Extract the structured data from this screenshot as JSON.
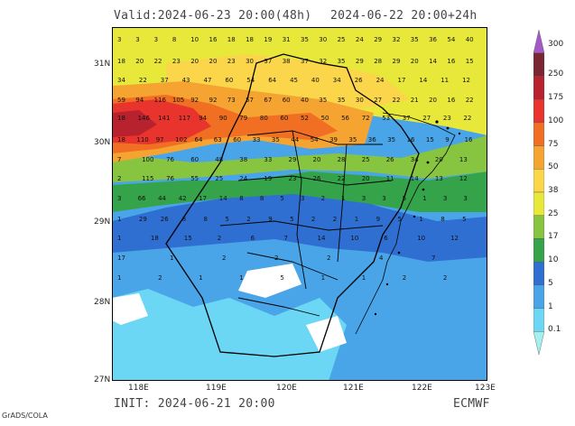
{
  "header": {
    "valid": "Valid:2024-06-23 20:00(48h)",
    "forecast": "2024-06-22 20:00+24h",
    "init": "INIT: 2024-06-21 20:00",
    "model": "ECMWF"
  },
  "credit": "GrADS/COLA",
  "axes": {
    "lat": [
      "31N",
      "30N",
      "29N",
      "28N",
      "27N"
    ],
    "lon": [
      "118E",
      "119E",
      "120E",
      "121E",
      "122E",
      "123E"
    ]
  },
  "colorbar": {
    "levels": [
      "300",
      "250",
      "175",
      "100",
      "75",
      "50",
      "38",
      "25",
      "17",
      "10",
      "5",
      "1",
      "0.1"
    ],
    "colors": [
      "#a35ac8",
      "#7a2632",
      "#b8212e",
      "#e8342c",
      "#f06f22",
      "#f6a431",
      "#fbd64a",
      "#e8e83a",
      "#87c540",
      "#35a34a",
      "#2f6fd2",
      "#49a4e8",
      "#6bd7f5",
      "#a6efef"
    ]
  },
  "map_labels": [
    "3",
    "3",
    "3",
    "8",
    "10",
    "16",
    "18",
    "18",
    "19",
    "31",
    "35",
    "30",
    "25",
    "24",
    "29",
    "32",
    "35",
    "36",
    "54",
    "40",
    "18",
    "20",
    "22",
    "23",
    "20",
    "20",
    "23",
    "30",
    "37",
    "38",
    "37",
    "32",
    "35",
    "29",
    "28",
    "29",
    "20",
    "14",
    "16",
    "15",
    "34",
    "22",
    "37",
    "43",
    "47",
    "60",
    "54",
    "64",
    "45",
    "40",
    "34",
    "26",
    "24",
    "17",
    "14",
    "11",
    "12",
    "59",
    "94",
    "116",
    "105",
    "92",
    "92",
    "73",
    "57",
    "67",
    "60",
    "40",
    "35",
    "35",
    "30",
    "27",
    "22",
    "21",
    "20",
    "16",
    "22",
    "18",
    "146",
    "141",
    "117",
    "94",
    "90",
    "79",
    "80",
    "60",
    "52",
    "50",
    "56",
    "72",
    "53",
    "37",
    "27",
    "23",
    "22",
    "18",
    "110",
    "97",
    "102",
    "64",
    "63",
    "60",
    "33",
    "35",
    "44",
    "54",
    "39",
    "35",
    "36",
    "35",
    "16",
    "15",
    "9",
    "16",
    "7",
    "100",
    "76",
    "60",
    "48",
    "38",
    "33",
    "29",
    "20",
    "28",
    "25",
    "26",
    "34",
    "20",
    "13",
    "2",
    "115",
    "76",
    "55",
    "25",
    "24",
    "19",
    "23",
    "26",
    "22",
    "20",
    "11",
    "14",
    "13",
    "12",
    "3",
    "66",
    "44",
    "42",
    "17",
    "14",
    "8",
    "8",
    "5",
    "3",
    "2",
    "1",
    "3",
    "3",
    "5",
    "1",
    "3",
    "3",
    "1",
    "29",
    "26",
    "8",
    "8",
    "5",
    "2",
    "9",
    "5",
    "2",
    "2",
    "1",
    "9",
    "5",
    "1",
    "8",
    "5",
    "1",
    "18",
    "15",
    "2",
    "6",
    "7",
    "14",
    "10",
    "6",
    "10",
    "12",
    "17",
    "1",
    "2",
    "2",
    "2",
    "4",
    "7",
    "1",
    "2",
    "1",
    "1",
    "5",
    "1",
    "1",
    "2",
    "2",
    "5"
  ]
}
